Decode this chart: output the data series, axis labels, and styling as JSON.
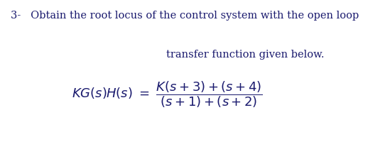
{
  "background_color": "#ffffff",
  "line1": "3-   Obtain the root locus of the control system with the open loop",
  "line2": "transfer function given below.",
  "text_color": "#1a1a6e",
  "font_size_main": 10.5,
  "font_size_eq": 13.0
}
